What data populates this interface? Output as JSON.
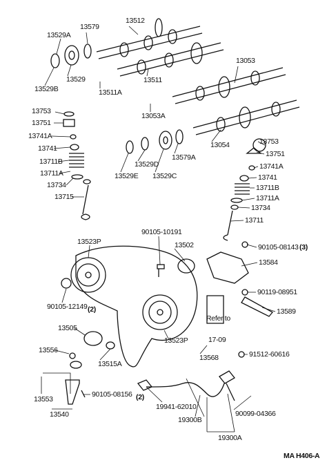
{
  "labels": [
    "13512",
    "13579",
    "13529A",
    "13529",
    "13529B",
    "13511A",
    "13511",
    "13053",
    "13053A",
    "13753",
    "13751",
    "13741A",
    "13741",
    "13711B",
    "13711A",
    "13734",
    "13715",
    "13054",
    "13579A",
    "13529D",
    "13529E",
    "13529C",
    "13753",
    "13751",
    "13741A",
    "13741",
    "13711B",
    "13711A",
    "13734",
    "13711",
    "90105-10191",
    "13502",
    "13523P",
    "90105-08143",
    "(3)",
    "13584",
    "90105-12149",
    "(2)",
    "90119-08951",
    "13589",
    "13505",
    "13523P",
    "Refer to",
    "17-09",
    "13568",
    "91512-60616",
    "13556",
    "13515A",
    "13553",
    "13540",
    "90105-08156",
    "(2)",
    "19941-62010",
    "19300B",
    "90099-04366",
    "19300A",
    "MA  H406-A"
  ]
}
